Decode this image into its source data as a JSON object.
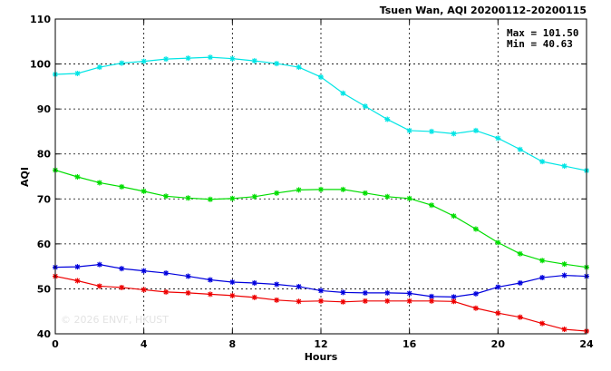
{
  "chart_data": {
    "type": "line",
    "title": "Tsuen Wan, AQI 20200112–20200115",
    "xlabel": "Hours",
    "ylabel": "AQI",
    "xlim": [
      0,
      24
    ],
    "ylim": [
      40,
      110
    ],
    "x_ticks": [
      0,
      4,
      8,
      12,
      16,
      20,
      24
    ],
    "y_ticks": [
      40,
      50,
      60,
      70,
      80,
      90,
      100,
      110
    ],
    "grid": true,
    "stats": {
      "max_label": "Max = 101.50",
      "min_label": "Min =  40.63"
    },
    "watermark": "© 2026  ENVF, HKUST",
    "x": [
      0,
      1,
      2,
      3,
      4,
      5,
      6,
      7,
      8,
      9,
      10,
      11,
      12,
      13,
      14,
      15,
      16,
      17,
      18,
      19,
      20,
      21,
      22,
      23,
      24
    ],
    "series": [
      {
        "color": "#00e5e5",
        "values": [
          97.7,
          97.9,
          99.3,
          100.2,
          100.6,
          101.1,
          101.3,
          101.5,
          101.2,
          100.7,
          100.1,
          99.3,
          97.1,
          93.5,
          90.6,
          87.7,
          85.2,
          85.0,
          84.5,
          85.2,
          83.5,
          81.0,
          78.3,
          77.3,
          76.3
        ]
      },
      {
        "color": "#00dd00",
        "values": [
          76.4,
          74.9,
          73.6,
          72.7,
          71.7,
          70.6,
          70.2,
          69.9,
          70.1,
          70.5,
          71.3,
          72.0,
          72.1,
          72.1,
          71.3,
          70.5,
          70.1,
          68.6,
          66.2,
          63.3,
          60.3,
          57.8,
          56.3,
          55.5,
          54.8
        ]
      },
      {
        "color": "#0000dd",
        "values": [
          54.8,
          54.9,
          55.4,
          54.5,
          54.0,
          53.5,
          52.8,
          52.0,
          51.5,
          51.3,
          51.0,
          50.5,
          49.6,
          49.2,
          49.1,
          49.1,
          49.0,
          48.3,
          48.2,
          48.9,
          50.4,
          51.3,
          52.5,
          53.0,
          52.8
        ]
      },
      {
        "color": "#ee0000",
        "values": [
          52.8,
          51.8,
          50.6,
          50.3,
          49.8,
          49.3,
          49.1,
          48.8,
          48.5,
          48.1,
          47.5,
          47.2,
          47.3,
          47.1,
          47.3,
          47.3,
          47.3,
          47.3,
          47.2,
          45.7,
          44.6,
          43.7,
          42.3,
          41.0,
          40.6
        ]
      }
    ]
  }
}
